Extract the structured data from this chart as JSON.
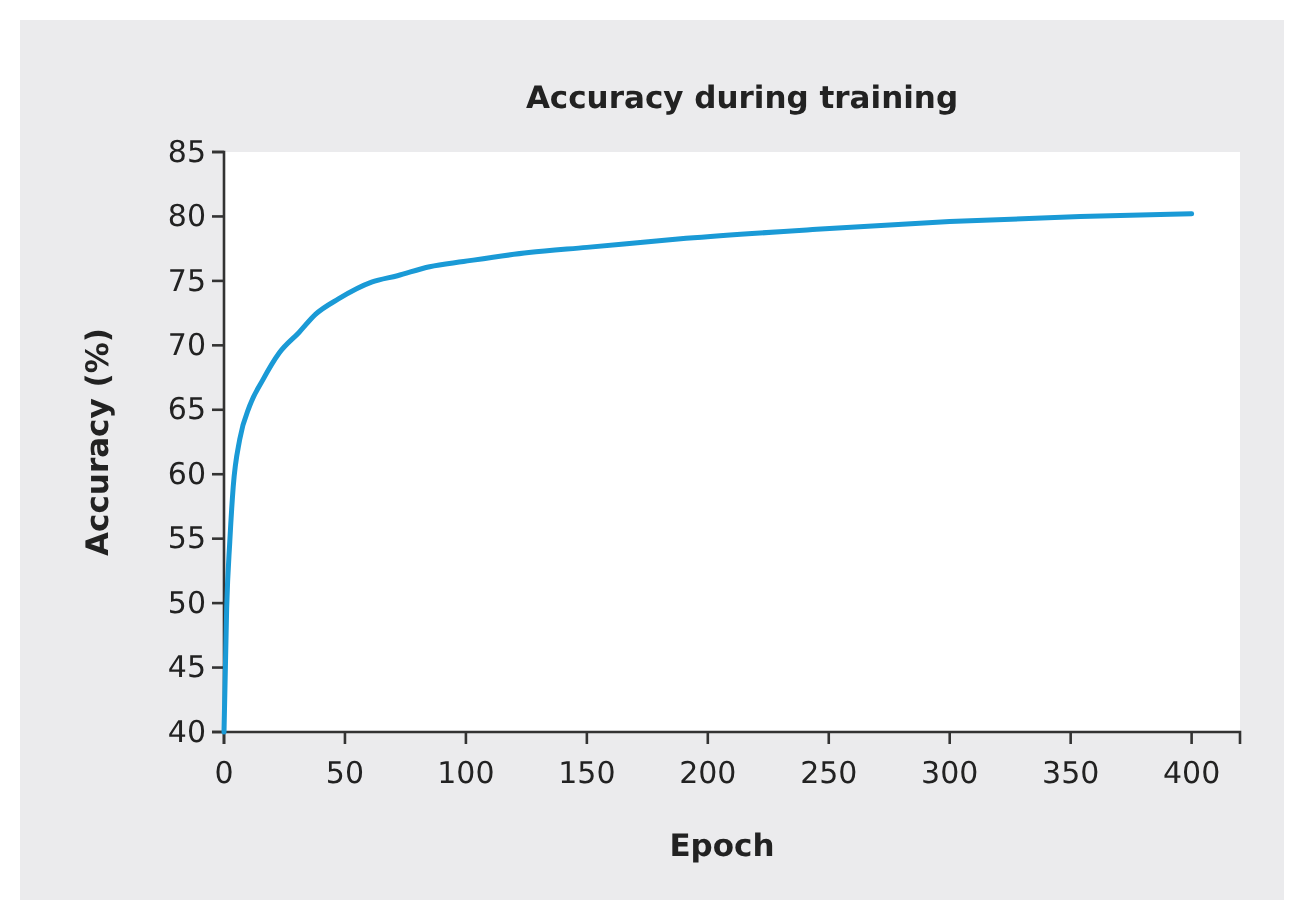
{
  "chart_data": {
    "type": "line",
    "title": "Accuracy during training",
    "xlabel": "Epoch",
    "ylabel": "Accuracy (%)",
    "x": [
      0,
      1.1,
      2.4,
      3.8,
      6.5,
      10.6,
      16,
      22.8,
      31,
      37.8,
      47.3,
      61,
      71.7,
      85,
      99,
      126,
      150,
      191,
      245,
      300,
      354,
      400
    ],
    "series": [
      {
        "color": "#1a9ad6",
        "values": [
          40,
          49.6,
          54.8,
          59,
          62.7,
          65.3,
          67.3,
          69.4,
          71,
          72.4,
          73.6,
          74.9,
          75.4,
          76.1,
          76.5,
          77.2,
          77.6,
          78.3,
          79.0,
          79.6,
          80.0,
          80.2
        ]
      }
    ],
    "xlim": [
      0,
      420
    ],
    "xticks": [
      0,
      50,
      100,
      150,
      200,
      250,
      300,
      350,
      400
    ],
    "ylim": [
      40,
      85
    ],
    "yticks": [
      40,
      45,
      50,
      55,
      60,
      65,
      70,
      75,
      80,
      85
    ],
    "grid": false,
    "marker": "none",
    "line_style": "solid"
  }
}
